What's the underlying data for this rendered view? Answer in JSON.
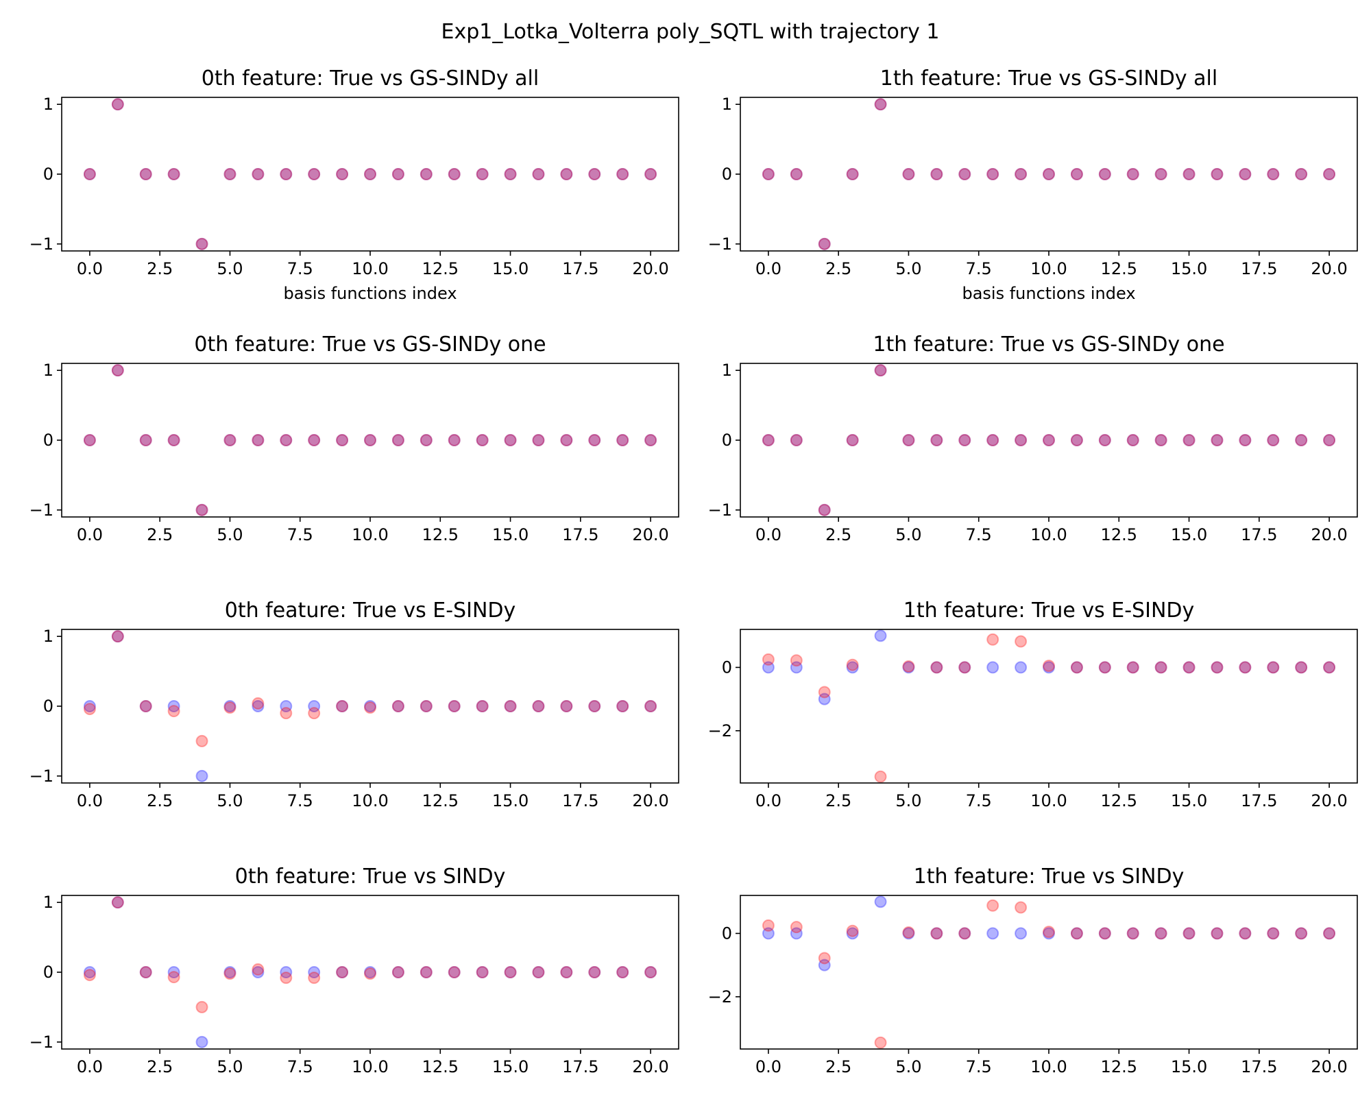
{
  "figure": {
    "suptitle": "Exp1_Lotka_Volterra poly_SQTL with trajectory 1"
  },
  "colors": {
    "true_series": "#0000ff",
    "estimated_series": "#ff0000",
    "alpha": 0.3
  },
  "chart_data": [
    {
      "type": "scatter",
      "title": "0th feature: True vs GS-SINDy all",
      "xlabel": "basis functions index",
      "ylabel": "",
      "xlim": [
        -1,
        21
      ],
      "ylim": [
        -1.1,
        1.1
      ],
      "xticks": [
        0,
        2.5,
        5,
        7.5,
        10,
        12.5,
        15,
        17.5,
        20
      ],
      "xtick_labels": [
        "0.0",
        "2.5",
        "5.0",
        "7.5",
        "10.0",
        "12.5",
        "15.0",
        "17.5",
        "20.0"
      ],
      "yticks": [
        -1,
        0,
        1
      ],
      "ytick_labels": [
        "−1",
        "0",
        "1"
      ],
      "x": [
        0,
        1,
        2,
        3,
        4,
        5,
        6,
        7,
        8,
        9,
        10,
        11,
        12,
        13,
        14,
        15,
        16,
        17,
        18,
        19,
        20
      ],
      "series": [
        {
          "color": "#0000ff",
          "values": [
            0,
            1,
            0,
            0,
            -1,
            0,
            0,
            0,
            0,
            0,
            0,
            0,
            0,
            0,
            0,
            0,
            0,
            0,
            0,
            0,
            0
          ]
        },
        {
          "color": "#ff0000",
          "values": [
            0,
            1,
            0,
            0,
            -1,
            0,
            0,
            0,
            0,
            0,
            0,
            0,
            0,
            0,
            0,
            0,
            0,
            0,
            0,
            0,
            0
          ]
        }
      ]
    },
    {
      "type": "scatter",
      "title": "1th feature: True vs GS-SINDy all",
      "xlabel": "basis functions index",
      "ylabel": "",
      "xlim": [
        -1,
        21
      ],
      "ylim": [
        -1.1,
        1.1
      ],
      "xticks": [
        0,
        2.5,
        5,
        7.5,
        10,
        12.5,
        15,
        17.5,
        20
      ],
      "xtick_labels": [
        "0.0",
        "2.5",
        "5.0",
        "7.5",
        "10.0",
        "12.5",
        "15.0",
        "17.5",
        "20.0"
      ],
      "yticks": [
        -1,
        0,
        1
      ],
      "ytick_labels": [
        "−1",
        "0",
        "1"
      ],
      "x": [
        0,
        1,
        2,
        3,
        4,
        5,
        6,
        7,
        8,
        9,
        10,
        11,
        12,
        13,
        14,
        15,
        16,
        17,
        18,
        19,
        20
      ],
      "series": [
        {
          "color": "#0000ff",
          "values": [
            0,
            0,
            -1,
            0,
            1,
            0,
            0,
            0,
            0,
            0,
            0,
            0,
            0,
            0,
            0,
            0,
            0,
            0,
            0,
            0,
            0
          ]
        },
        {
          "color": "#ff0000",
          "values": [
            0,
            0,
            -1,
            0,
            1,
            0,
            0,
            0,
            0,
            0,
            0,
            0,
            0,
            0,
            0,
            0,
            0,
            0,
            0,
            0,
            0
          ]
        }
      ]
    },
    {
      "type": "scatter",
      "title": "0th feature: True vs GS-SINDy one",
      "xlabel": "",
      "ylabel": "",
      "xlim": [
        -1,
        21
      ],
      "ylim": [
        -1.1,
        1.1
      ],
      "xticks": [
        0,
        2.5,
        5,
        7.5,
        10,
        12.5,
        15,
        17.5,
        20
      ],
      "xtick_labels": [
        "0.0",
        "2.5",
        "5.0",
        "7.5",
        "10.0",
        "12.5",
        "15.0",
        "17.5",
        "20.0"
      ],
      "yticks": [
        -1,
        0,
        1
      ],
      "ytick_labels": [
        "−1",
        "0",
        "1"
      ],
      "x": [
        0,
        1,
        2,
        3,
        4,
        5,
        6,
        7,
        8,
        9,
        10,
        11,
        12,
        13,
        14,
        15,
        16,
        17,
        18,
        19,
        20
      ],
      "series": [
        {
          "color": "#0000ff",
          "values": [
            0,
            1,
            0,
            0,
            -1,
            0,
            0,
            0,
            0,
            0,
            0,
            0,
            0,
            0,
            0,
            0,
            0,
            0,
            0,
            0,
            0
          ]
        },
        {
          "color": "#ff0000",
          "values": [
            0,
            1,
            0,
            0,
            -1,
            0,
            0,
            0,
            0,
            0,
            0,
            0,
            0,
            0,
            0,
            0,
            0,
            0,
            0,
            0,
            0
          ]
        }
      ]
    },
    {
      "type": "scatter",
      "title": "1th feature: True vs GS-SINDy one",
      "xlabel": "",
      "ylabel": "",
      "xlim": [
        -1,
        21
      ],
      "ylim": [
        -1.1,
        1.1
      ],
      "xticks": [
        0,
        2.5,
        5,
        7.5,
        10,
        12.5,
        15,
        17.5,
        20
      ],
      "xtick_labels": [
        "0.0",
        "2.5",
        "5.0",
        "7.5",
        "10.0",
        "12.5",
        "15.0",
        "17.5",
        "20.0"
      ],
      "yticks": [
        -1,
        0,
        1
      ],
      "ytick_labels": [
        "−1",
        "0",
        "1"
      ],
      "x": [
        0,
        1,
        2,
        3,
        4,
        5,
        6,
        7,
        8,
        9,
        10,
        11,
        12,
        13,
        14,
        15,
        16,
        17,
        18,
        19,
        20
      ],
      "series": [
        {
          "color": "#0000ff",
          "values": [
            0,
            0,
            -1,
            0,
            1,
            0,
            0,
            0,
            0,
            0,
            0,
            0,
            0,
            0,
            0,
            0,
            0,
            0,
            0,
            0,
            0
          ]
        },
        {
          "color": "#ff0000",
          "values": [
            0,
            0,
            -1,
            0,
            1,
            0,
            0,
            0,
            0,
            0,
            0,
            0,
            0,
            0,
            0,
            0,
            0,
            0,
            0,
            0,
            0
          ]
        }
      ]
    },
    {
      "type": "scatter",
      "title": "0th feature: True vs E-SINDy",
      "xlabel": "",
      "ylabel": "",
      "xlim": [
        -1,
        21
      ],
      "ylim": [
        -1.1,
        1.1
      ],
      "xticks": [
        0,
        2.5,
        5,
        7.5,
        10,
        12.5,
        15,
        17.5,
        20
      ],
      "xtick_labels": [
        "0.0",
        "2.5",
        "5.0",
        "7.5",
        "10.0",
        "12.5",
        "15.0",
        "17.5",
        "20.0"
      ],
      "yticks": [
        -1,
        0,
        1
      ],
      "ytick_labels": [
        "−1",
        "0",
        "1"
      ],
      "x": [
        0,
        1,
        2,
        3,
        4,
        5,
        6,
        7,
        8,
        9,
        10,
        11,
        12,
        13,
        14,
        15,
        16,
        17,
        18,
        19,
        20
      ],
      "series": [
        {
          "color": "#0000ff",
          "values": [
            0,
            1,
            0,
            0,
            -1,
            0,
            0,
            0,
            0,
            0,
            0,
            0,
            0,
            0,
            0,
            0,
            0,
            0,
            0,
            0,
            0
          ]
        },
        {
          "color": "#ff0000",
          "values": [
            -0.04,
            1,
            0,
            -0.07,
            -0.5,
            -0.02,
            0.04,
            -0.1,
            -0.1,
            0,
            -0.02,
            0,
            0,
            0,
            0,
            0,
            0,
            0,
            0,
            0,
            0
          ]
        }
      ]
    },
    {
      "type": "scatter",
      "title": "1th feature: True vs E-SINDy",
      "xlabel": "",
      "ylabel": "",
      "xlim": [
        -1,
        21
      ],
      "ylim": [
        -3.65,
        1.2
      ],
      "xticks": [
        0,
        2.5,
        5,
        7.5,
        10,
        12.5,
        15,
        17.5,
        20
      ],
      "xtick_labels": [
        "0.0",
        "2.5",
        "5.0",
        "7.5",
        "10.0",
        "12.5",
        "15.0",
        "17.5",
        "20.0"
      ],
      "yticks": [
        -2,
        0
      ],
      "ytick_labels": [
        "−2",
        "0"
      ],
      "x": [
        0,
        1,
        2,
        3,
        4,
        5,
        6,
        7,
        8,
        9,
        10,
        11,
        12,
        13,
        14,
        15,
        16,
        17,
        18,
        19,
        20
      ],
      "series": [
        {
          "color": "#0000ff",
          "values": [
            0,
            0,
            -1,
            0,
            1,
            0,
            0,
            0,
            0,
            0,
            0,
            0,
            0,
            0,
            0,
            0,
            0,
            0,
            0,
            0,
            0
          ]
        },
        {
          "color": "#ff0000",
          "values": [
            0.25,
            0.22,
            -0.78,
            0.08,
            -3.45,
            0.03,
            0,
            0,
            0.88,
            0.82,
            0.05,
            0,
            0,
            0,
            0,
            0,
            0,
            0,
            0,
            0,
            0
          ]
        }
      ]
    },
    {
      "type": "scatter",
      "title": "0th feature: True vs SINDy",
      "xlabel": "",
      "ylabel": "",
      "xlim": [
        -1,
        21
      ],
      "ylim": [
        -1.1,
        1.1
      ],
      "xticks": [
        0,
        2.5,
        5,
        7.5,
        10,
        12.5,
        15,
        17.5,
        20
      ],
      "xtick_labels": [
        "0.0",
        "2.5",
        "5.0",
        "7.5",
        "10.0",
        "12.5",
        "15.0",
        "17.5",
        "20.0"
      ],
      "yticks": [
        -1,
        0,
        1
      ],
      "ytick_labels": [
        "−1",
        "0",
        "1"
      ],
      "x": [
        0,
        1,
        2,
        3,
        4,
        5,
        6,
        7,
        8,
        9,
        10,
        11,
        12,
        13,
        14,
        15,
        16,
        17,
        18,
        19,
        20
      ],
      "series": [
        {
          "color": "#0000ff",
          "values": [
            0,
            1,
            0,
            0,
            -1,
            0,
            0,
            0,
            0,
            0,
            0,
            0,
            0,
            0,
            0,
            0,
            0,
            0,
            0,
            0,
            0
          ]
        },
        {
          "color": "#ff0000",
          "values": [
            -0.04,
            1,
            0,
            -0.07,
            -0.5,
            -0.02,
            0.04,
            -0.08,
            -0.08,
            0,
            -0.02,
            0,
            0,
            0,
            0,
            0,
            0,
            0,
            0,
            0,
            0
          ]
        }
      ]
    },
    {
      "type": "scatter",
      "title": "1th feature: True vs SINDy",
      "xlabel": "",
      "ylabel": "",
      "xlim": [
        -1,
        21
      ],
      "ylim": [
        -3.65,
        1.2
      ],
      "xticks": [
        0,
        2.5,
        5,
        7.5,
        10,
        12.5,
        15,
        17.5,
        20
      ],
      "xtick_labels": [
        "0.0",
        "2.5",
        "5.0",
        "7.5",
        "10.0",
        "12.5",
        "15.0",
        "17.5",
        "20.0"
      ],
      "yticks": [
        -2,
        0
      ],
      "ytick_labels": [
        "−2",
        "0"
      ],
      "x": [
        0,
        1,
        2,
        3,
        4,
        5,
        6,
        7,
        8,
        9,
        10,
        11,
        12,
        13,
        14,
        15,
        16,
        17,
        18,
        19,
        20
      ],
      "series": [
        {
          "color": "#0000ff",
          "values": [
            0,
            0,
            -1,
            0,
            1,
            0,
            0,
            0,
            0,
            0,
            0,
            0,
            0,
            0,
            0,
            0,
            0,
            0,
            0,
            0,
            0
          ]
        },
        {
          "color": "#ff0000",
          "values": [
            0.25,
            0.2,
            -0.78,
            0.08,
            -3.45,
            0.03,
            0,
            0,
            0.88,
            0.82,
            0.05,
            0,
            0,
            0,
            0,
            0,
            0,
            0,
            0,
            0,
            0
          ]
        }
      ]
    }
  ]
}
